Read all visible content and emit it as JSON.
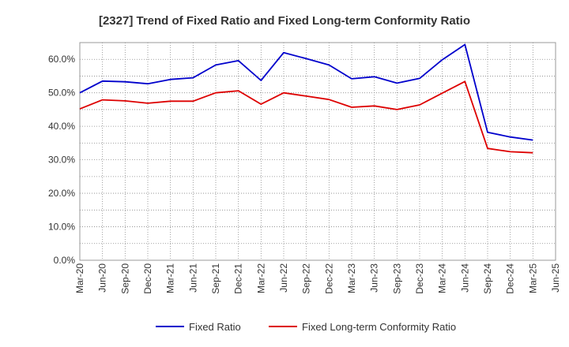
{
  "chart_data": {
    "type": "line",
    "title": "[2327]  Trend of Fixed Ratio and Fixed Long-term Conformity Ratio",
    "xlabel": "",
    "ylabel": "",
    "ylim": [
      0,
      65
    ],
    "y_ticks": [
      0,
      10,
      20,
      30,
      40,
      50,
      60
    ],
    "y_tick_labels": [
      "0.0%",
      "10.0%",
      "20.0%",
      "30.0%",
      "40.0%",
      "50.0%",
      "60.0%"
    ],
    "x_tick_labels": [
      "Mar-20",
      "Jun-20",
      "Sep-20",
      "Dec-20",
      "Mar-21",
      "Jun-21",
      "Sep-21",
      "Dec-21",
      "Mar-22",
      "Jun-22",
      "Sep-22",
      "Dec-22",
      "Mar-23",
      "Jun-23",
      "Sep-23",
      "Dec-23",
      "Mar-24",
      "Jun-24",
      "Sep-24",
      "Dec-24",
      "Mar-25",
      "Jun-25"
    ],
    "categories": [
      "Mar-20",
      "Jun-20",
      "Sep-20",
      "Dec-20",
      "Mar-21",
      "Jun-21",
      "Sep-21",
      "Dec-21",
      "Mar-22",
      "Jun-22",
      "Sep-22",
      "Dec-22",
      "Mar-23",
      "Jun-23",
      "Sep-23",
      "Dec-23",
      "Mar-24",
      "Jun-24",
      "Sep-24",
      "Dec-24",
      "Mar-25"
    ],
    "grid": true,
    "legend_position": "bottom",
    "series": [
      {
        "name": "Fixed Ratio",
        "color": "#0000cc",
        "values": [
          50.0,
          53.5,
          53.3,
          52.7,
          54.0,
          54.5,
          58.3,
          59.6,
          53.7,
          62.0,
          60.2,
          58.3,
          54.2,
          54.8,
          52.9,
          54.3,
          59.9,
          64.4,
          38.2,
          36.8,
          35.9
        ]
      },
      {
        "name": "Fixed Long-term Conformity Ratio",
        "color": "#dd0000",
        "values": [
          45.2,
          47.9,
          47.6,
          46.9,
          47.5,
          47.5,
          50.0,
          50.6,
          46.6,
          50.0,
          49.0,
          48.0,
          45.7,
          46.1,
          45.0,
          46.4,
          49.9,
          53.4,
          33.4,
          32.4,
          32.1
        ]
      }
    ]
  }
}
